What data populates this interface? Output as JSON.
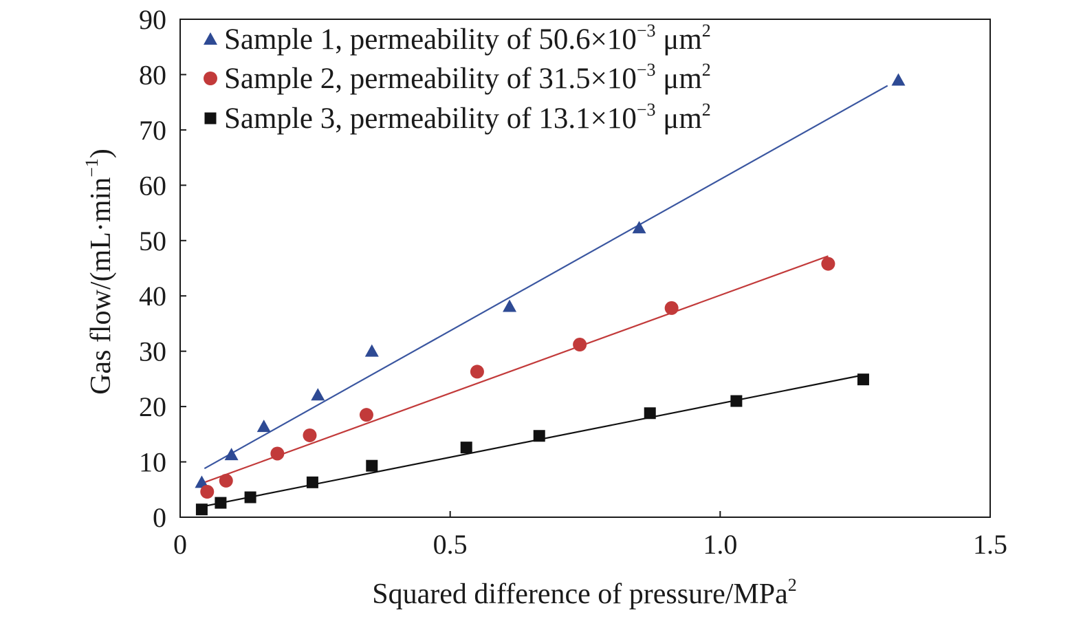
{
  "chart_data": {
    "type": "scatter",
    "title": "",
    "xlabel": {
      "main": "Squared difference of pressure/MPa",
      "sup": "2"
    },
    "ylabel": {
      "main": "Gas flow/(mL·min",
      "sup": "−1",
      "close": ")"
    },
    "xlim": [
      0,
      1.5
    ],
    "ylim": [
      0,
      90
    ],
    "xticks": [
      0,
      0.5,
      1.0,
      1.5
    ],
    "xtick_labels": [
      "0",
      "0.5",
      "1.0",
      "1.5"
    ],
    "yticks": [
      0,
      10,
      20,
      30,
      40,
      50,
      60,
      70,
      80,
      90
    ],
    "ytick_labels": [
      "0",
      "10",
      "20",
      "30",
      "40",
      "50",
      "60",
      "70",
      "80",
      "90"
    ],
    "grid": false,
    "legend_position": "top-left",
    "series": [
      {
        "name": "Sample 1, permeability of 50.6×10",
        "name_sup": "−3",
        "name_unit": " μm",
        "name_unit_sup": "2",
        "marker": "triangle",
        "color": "#2e4a94",
        "line_color": "#3a56a0",
        "x": [
          0.04,
          0.095,
          0.155,
          0.255,
          0.355,
          0.61,
          0.85,
          1.33
        ],
        "y": [
          6.3,
          11.3,
          16.4,
          22.1,
          30.0,
          38.1,
          52.3,
          79.0
        ],
        "fit": {
          "x": [
            0.045,
            1.31
          ],
          "y": [
            8.8,
            78.0
          ]
        }
      },
      {
        "name": "Sample 2, permeability of 31.5×10",
        "name_sup": "−3",
        "name_unit": " μm",
        "name_unit_sup": "2",
        "marker": "circle",
        "color": "#c23a3a",
        "line_color": "#c23a3a",
        "x": [
          0.05,
          0.085,
          0.18,
          0.24,
          0.345,
          0.55,
          0.74,
          0.91,
          1.2
        ],
        "y": [
          4.6,
          6.6,
          11.5,
          14.8,
          18.5,
          26.3,
          31.2,
          37.8,
          45.8
        ],
        "fit": {
          "x": [
            0.045,
            1.2
          ],
          "y": [
            6.3,
            47.2
          ]
        }
      },
      {
        "name": "Sample 3, permeability of 13.1×10",
        "name_sup": "−3",
        "name_unit": " μm",
        "name_unit_sup": "2",
        "marker": "square",
        "color": "#111111",
        "line_color": "#111111",
        "x": [
          0.04,
          0.075,
          0.13,
          0.245,
          0.355,
          0.53,
          0.665,
          0.87,
          1.03,
          1.265
        ],
        "y": [
          1.4,
          2.6,
          3.6,
          6.3,
          9.3,
          12.6,
          14.7,
          18.8,
          21.0,
          24.9
        ],
        "fit": {
          "x": [
            0.04,
            1.265
          ],
          "y": [
            1.9,
            25.7
          ]
        }
      }
    ]
  }
}
